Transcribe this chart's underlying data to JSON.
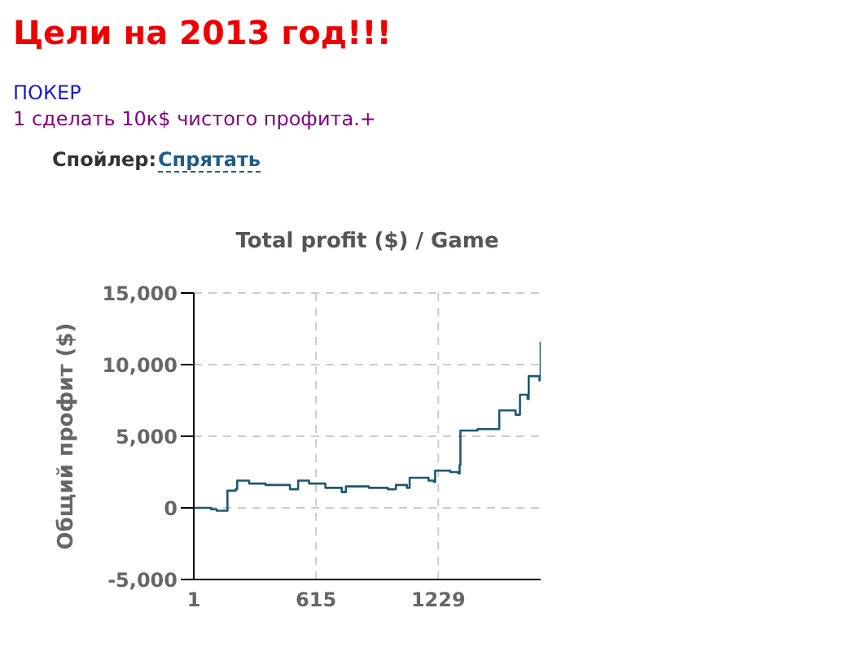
{
  "chart_data": {
    "type": "step",
    "title": "Total profit ($) / Game",
    "ylabel": "Общий профит ($)",
    "annotations": [
      "Цели на 2013 год!!!",
      "ПОКЕР",
      "1 сделать 10к$ чистого профита.+",
      "Спойлер:",
      "Спрятать"
    ],
    "x": [
      1,
      88,
      116,
      165,
      170,
      211,
      219,
      279,
      361,
      416,
      484,
      525,
      580,
      662,
      744,
      765,
      880,
      975,
      1016,
      1071,
      1085,
      1180,
      1207,
      1213,
      1289,
      1330,
      1336,
      1340,
      1426,
      1522,
      1535,
      1617,
      1639,
      1677,
      1683,
      1737,
      1743
    ],
    "series": [
      {
        "color": "#1b5a6e",
        "values": [
          0,
          -100,
          -200,
          -200,
          1200,
          1300,
          1900,
          1700,
          1600,
          1600,
          1300,
          1900,
          1700,
          1400,
          1100,
          1500,
          1400,
          1300,
          1600,
          1400,
          2100,
          1900,
          1800,
          2600,
          2500,
          2400,
          3000,
          5400,
          5500,
          5500,
          6800,
          6500,
          7900,
          7600,
          9200,
          8900,
          11600
        ]
      }
    ],
    "xlim": [
      1,
      1743
    ],
    "xticks": [
      1,
      615,
      1229
    ],
    "ylim": [
      -5000,
      15000
    ],
    "yticks": [
      {
        "value": -5000,
        "label": "-5,000"
      },
      0,
      {
        "value": 5000,
        "label": "5,000"
      },
      {
        "value": 10000,
        "label": "10,000"
      },
      {
        "value": 15000,
        "label": "15,000"
      }
    ],
    "grid": true,
    "marker": "none",
    "line_style": "solid"
  }
}
